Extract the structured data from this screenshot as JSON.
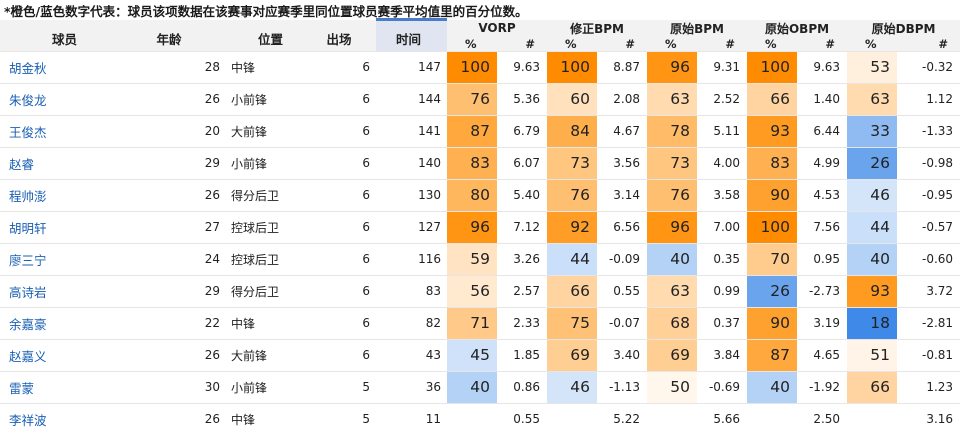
{
  "note": "*橙色/蓝色数字代表：球员该项数据在该赛事对应赛季里同位置球员赛季平均值里的百分位数。",
  "columns": {
    "player": "球员",
    "age": "年龄",
    "position": "位置",
    "games": "出场",
    "minutes": "时间",
    "groups": [
      "VORP",
      "修正BPM",
      "原始BPM",
      "原始OBPM",
      "原始DBPM"
    ],
    "pct_sym": "%",
    "val_sym": "#"
  },
  "colors": {
    "orange_strong": "#ff8c00",
    "blue_strong": "#3f8ae8",
    "name_link": "#1a5fb4"
  },
  "rows": [
    {
      "name": "胡金秋",
      "age": "28",
      "pos": "中锋",
      "gp": "6",
      "min": "147",
      "stats": [
        {
          "p": "100",
          "v": "9.63"
        },
        {
          "p": "100",
          "v": "8.87"
        },
        {
          "p": "96",
          "v": "9.31"
        },
        {
          "p": "100",
          "v": "9.63"
        },
        {
          "p": "53",
          "v": "-0.32"
        }
      ]
    },
    {
      "name": "朱俊龙",
      "age": "26",
      "pos": "小前锋",
      "gp": "6",
      "min": "144",
      "stats": [
        {
          "p": "76",
          "v": "5.36"
        },
        {
          "p": "60",
          "v": "2.08"
        },
        {
          "p": "63",
          "v": "2.52"
        },
        {
          "p": "66",
          "v": "1.40"
        },
        {
          "p": "63",
          "v": "1.12"
        }
      ]
    },
    {
      "name": "王俊杰",
      "age": "20",
      "pos": "大前锋",
      "gp": "6",
      "min": "141",
      "stats": [
        {
          "p": "87",
          "v": "6.79"
        },
        {
          "p": "84",
          "v": "4.67"
        },
        {
          "p": "78",
          "v": "5.11"
        },
        {
          "p": "93",
          "v": "6.44"
        },
        {
          "p": "33",
          "v": "-1.33"
        }
      ]
    },
    {
      "name": "赵睿",
      "age": "29",
      "pos": "小前锋",
      "gp": "6",
      "min": "140",
      "stats": [
        {
          "p": "83",
          "v": "6.07"
        },
        {
          "p": "73",
          "v": "3.56"
        },
        {
          "p": "73",
          "v": "4.00"
        },
        {
          "p": "83",
          "v": "4.99"
        },
        {
          "p": "26",
          "v": "-0.98"
        }
      ]
    },
    {
      "name": "程帅澎",
      "age": "26",
      "pos": "得分后卫",
      "gp": "6",
      "min": "130",
      "stats": [
        {
          "p": "80",
          "v": "5.40"
        },
        {
          "p": "76",
          "v": "3.14"
        },
        {
          "p": "76",
          "v": "3.58"
        },
        {
          "p": "90",
          "v": "4.53"
        },
        {
          "p": "46",
          "v": "-0.95"
        }
      ]
    },
    {
      "name": "胡明轩",
      "age": "27",
      "pos": "控球后卫",
      "gp": "6",
      "min": "127",
      "stats": [
        {
          "p": "96",
          "v": "7.12"
        },
        {
          "p": "92",
          "v": "6.56"
        },
        {
          "p": "96",
          "v": "7.00"
        },
        {
          "p": "100",
          "v": "7.56"
        },
        {
          "p": "44",
          "v": "-0.57"
        }
      ]
    },
    {
      "name": "廖三宁",
      "age": "24",
      "pos": "控球后卫",
      "gp": "6",
      "min": "116",
      "stats": [
        {
          "p": "59",
          "v": "3.26"
        },
        {
          "p": "44",
          "v": "-0.09"
        },
        {
          "p": "40",
          "v": "0.35"
        },
        {
          "p": "70",
          "v": "0.95"
        },
        {
          "p": "40",
          "v": "-0.60"
        }
      ]
    },
    {
      "name": "高诗岩",
      "age": "29",
      "pos": "得分后卫",
      "gp": "6",
      "min": "83",
      "stats": [
        {
          "p": "56",
          "v": "2.57"
        },
        {
          "p": "66",
          "v": "0.55"
        },
        {
          "p": "63",
          "v": "0.99"
        },
        {
          "p": "26",
          "v": "-2.73"
        },
        {
          "p": "93",
          "v": "3.72"
        }
      ]
    },
    {
      "name": "余嘉豪",
      "age": "22",
      "pos": "中锋",
      "gp": "6",
      "min": "82",
      "stats": [
        {
          "p": "71",
          "v": "2.33"
        },
        {
          "p": "75",
          "v": "-0.07"
        },
        {
          "p": "68",
          "v": "0.37"
        },
        {
          "p": "90",
          "v": "3.19"
        },
        {
          "p": "18",
          "v": "-2.81"
        }
      ]
    },
    {
      "name": "赵嘉义",
      "age": "26",
      "pos": "大前锋",
      "gp": "6",
      "min": "43",
      "stats": [
        {
          "p": "45",
          "v": "1.85"
        },
        {
          "p": "69",
          "v": "3.40"
        },
        {
          "p": "69",
          "v": "3.84"
        },
        {
          "p": "87",
          "v": "4.65"
        },
        {
          "p": "51",
          "v": "-0.81"
        }
      ]
    },
    {
      "name": "雷蒙",
      "age": "30",
      "pos": "小前锋",
      "gp": "5",
      "min": "36",
      "stats": [
        {
          "p": "40",
          "v": "0.86"
        },
        {
          "p": "46",
          "v": "-1.13"
        },
        {
          "p": "50",
          "v": "-0.69"
        },
        {
          "p": "40",
          "v": "-1.92"
        },
        {
          "p": "66",
          "v": "1.23"
        }
      ]
    },
    {
      "name": "李祥波",
      "age": "26",
      "pos": "中锋",
      "gp": "5",
      "min": "11",
      "stats": [
        {
          "p": "",
          "v": "0.55"
        },
        {
          "p": "",
          "v": "5.22"
        },
        {
          "p": "",
          "v": "5.66"
        },
        {
          "p": "",
          "v": "2.50"
        },
        {
          "p": "",
          "v": "3.16"
        }
      ]
    }
  ]
}
